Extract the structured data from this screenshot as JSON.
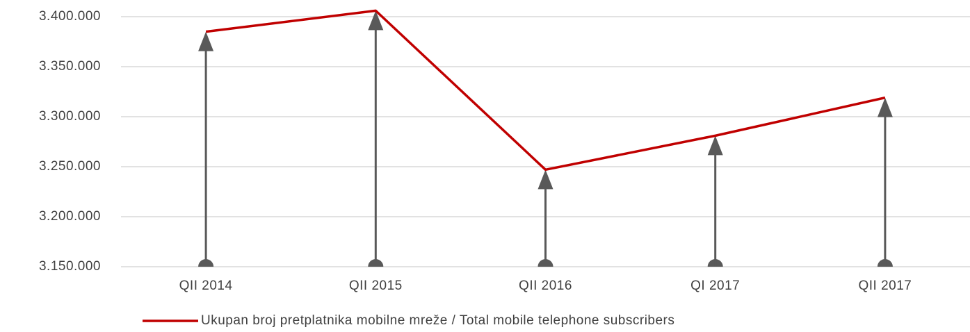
{
  "chart_data": {
    "type": "line",
    "categories": [
      "QII 2014",
      "QII 2015",
      "QII 2016",
      "QI 2017",
      "QII 2017"
    ],
    "series": [
      {
        "name": "Ukupan broj pretplatnika mobilne mreže / Total mobile telephone subscribers",
        "color": "#c00000",
        "values": [
          3385000,
          3406000,
          3247000,
          3281000,
          3319000
        ]
      }
    ],
    "ylim": [
      3150000,
      3400000
    ],
    "yticks": [
      {
        "value": 3150000,
        "label": "3.150.000"
      },
      {
        "value": 3200000,
        "label": "3.200.000"
      },
      {
        "value": 3250000,
        "label": "3.250.000"
      },
      {
        "value": 3300000,
        "label": "3.300.000"
      },
      {
        "value": 3350000,
        "label": "3.350.000"
      },
      {
        "value": 3400000,
        "label": "3.400.000"
      }
    ],
    "grid": true,
    "arrow_color": "#595959",
    "legend": "bottom"
  }
}
